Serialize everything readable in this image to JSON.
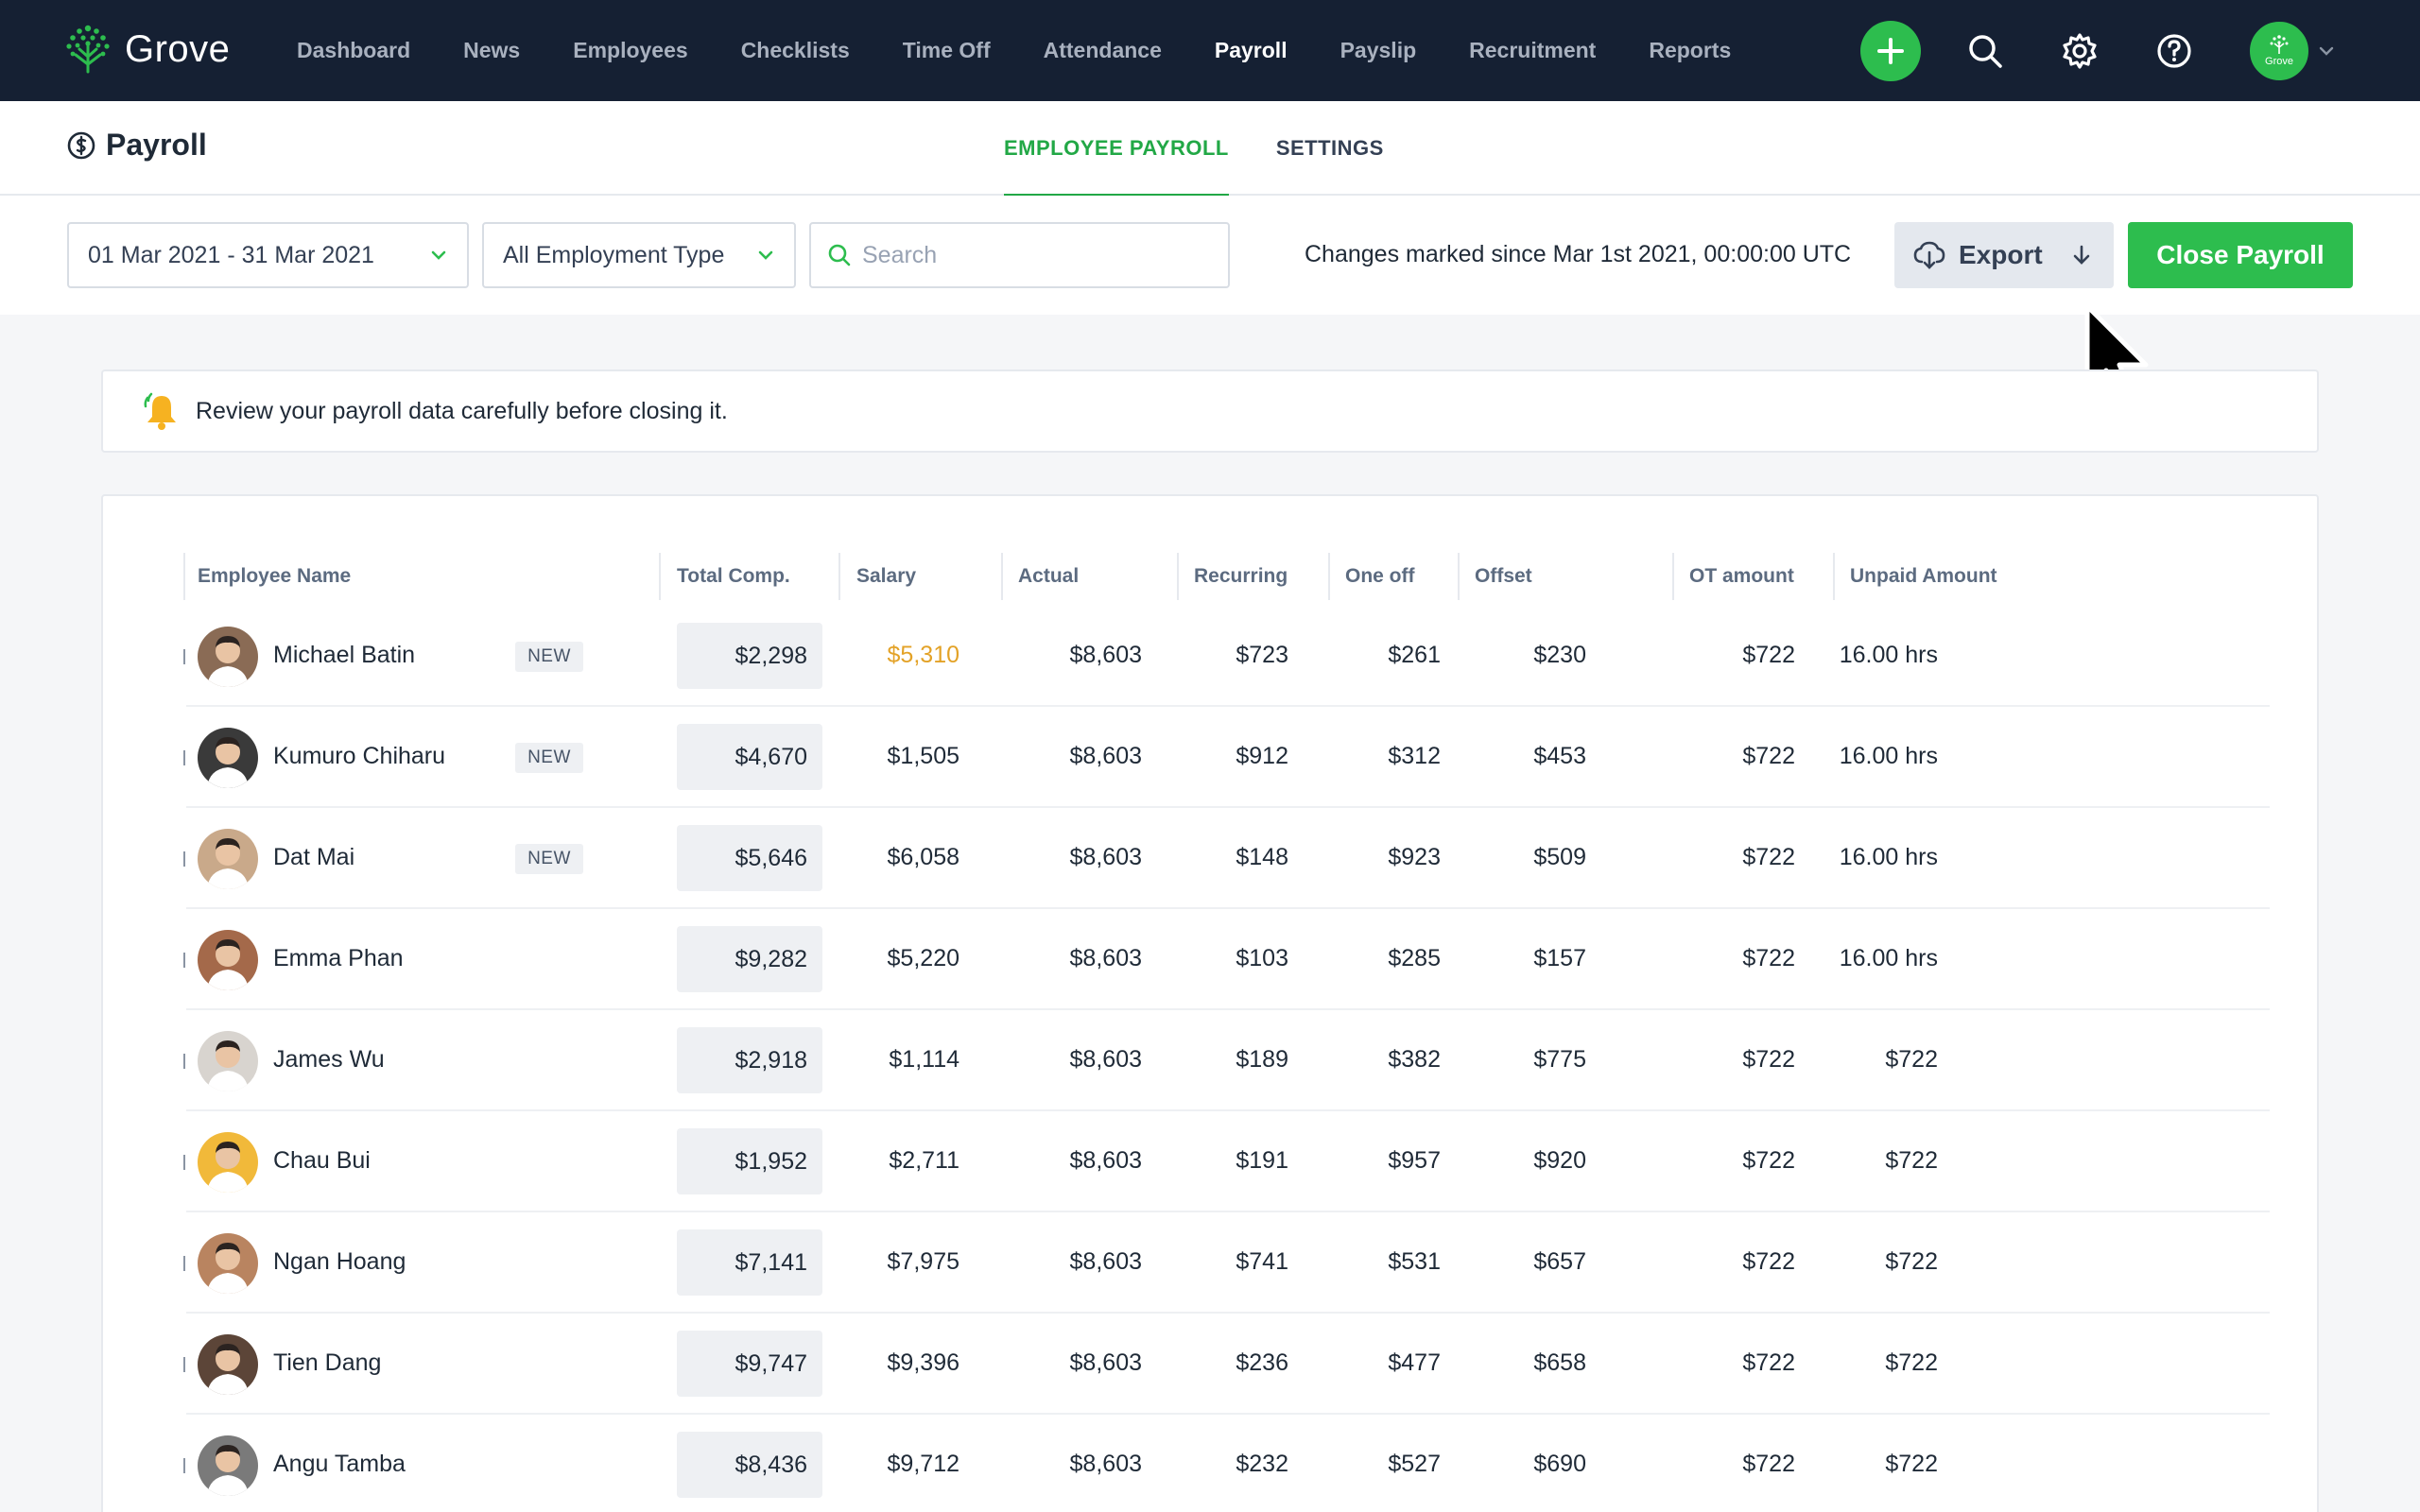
{
  "brand": {
    "name": "Grove",
    "accent": "#2dbd4e"
  },
  "nav": [
    {
      "label": "Dashboard",
      "active": false
    },
    {
      "label": "News",
      "active": false
    },
    {
      "label": "Employees",
      "active": false
    },
    {
      "label": "Checklists",
      "active": false
    },
    {
      "label": "Time Off",
      "active": false
    },
    {
      "label": "Attendance",
      "active": false
    },
    {
      "label": "Payroll",
      "active": true
    },
    {
      "label": "Payslip",
      "active": false
    },
    {
      "label": "Recruitment",
      "active": false
    },
    {
      "label": "Reports",
      "active": false
    }
  ],
  "top_actions": {
    "icons": [
      "plus-icon",
      "search-icon",
      "gear-icon",
      "help-icon"
    ],
    "avatar_label": "Grove"
  },
  "page": {
    "title": "Payroll",
    "tabs": [
      {
        "label": "EMPLOYEE PAYROLL",
        "active": true
      },
      {
        "label": "SETTINGS",
        "active": false
      }
    ]
  },
  "filters": {
    "date_range": "01 Mar 2021 - 31 Mar 2021",
    "employment_type": "All Employment Type",
    "search_placeholder": "Search",
    "changes_note": "Changes marked since Mar 1st 2021, 00:00:00 UTC",
    "export_label": "Export",
    "close_label": "Close Payroll"
  },
  "notice": {
    "text": "Review your payroll data carefully before closing it."
  },
  "table": {
    "columns": [
      "Employee Name",
      "Total Comp.",
      "Salary",
      "Actual",
      "Recurring",
      "One off",
      "Offset",
      "OT amount",
      "Unpaid Amount"
    ],
    "rows": [
      {
        "name": "Michael Batin",
        "badge": "NEW",
        "total": "$2,298",
        "salary": "$5,310",
        "salary_flag": true,
        "actual": "$8,603",
        "recurring": "$723",
        "oneoff": "$261",
        "offset": "$230",
        "ot": "$722",
        "unpaid": "16.00 hrs",
        "avatar_color": "#8a6b55"
      },
      {
        "name": "Kumuro Chiharu",
        "badge": "NEW",
        "total": "$4,670",
        "salary": "$1,505",
        "salary_flag": false,
        "actual": "$8,603",
        "recurring": "$912",
        "oneoff": "$312",
        "offset": "$453",
        "ot": "$722",
        "unpaid": "16.00 hrs",
        "avatar_color": "#3a3a3a"
      },
      {
        "name": "Dat Mai",
        "badge": "NEW",
        "total": "$5,646",
        "salary": "$6,058",
        "salary_flag": false,
        "actual": "$8,603",
        "recurring": "$148",
        "oneoff": "$923",
        "offset": "$509",
        "ot": "$722",
        "unpaid": "16.00 hrs",
        "avatar_color": "#c9a98a"
      },
      {
        "name": "Emma Phan",
        "badge": "",
        "total": "$9,282",
        "salary": "$5,220",
        "salary_flag": false,
        "actual": "$8,603",
        "recurring": "$103",
        "oneoff": "$285",
        "offset": "$157",
        "ot": "$722",
        "unpaid": "16.00 hrs",
        "avatar_color": "#a4694a"
      },
      {
        "name": "James Wu",
        "badge": "",
        "total": "$2,918",
        "salary": "$1,114",
        "salary_flag": false,
        "actual": "$8,603",
        "recurring": "$189",
        "oneoff": "$382",
        "offset": "$775",
        "ot": "$722",
        "unpaid": "$722",
        "avatar_color": "#d8d4cf"
      },
      {
        "name": "Chau Bui",
        "badge": "",
        "total": "$1,952",
        "salary": "$2,711",
        "salary_flag": false,
        "actual": "$8,603",
        "recurring": "$191",
        "oneoff": "$957",
        "offset": "$920",
        "ot": "$722",
        "unpaid": "$722",
        "avatar_color": "#f1b93a"
      },
      {
        "name": "Ngan Hoang",
        "badge": "",
        "total": "$7,141",
        "salary": "$7,975",
        "salary_flag": false,
        "actual": "$8,603",
        "recurring": "$741",
        "oneoff": "$531",
        "offset": "$657",
        "ot": "$722",
        "unpaid": "$722",
        "avatar_color": "#b98460"
      },
      {
        "name": "Tien Dang",
        "badge": "",
        "total": "$9,747",
        "salary": "$9,396",
        "salary_flag": false,
        "actual": "$8,603",
        "recurring": "$236",
        "oneoff": "$477",
        "offset": "$658",
        "ot": "$722",
        "unpaid": "$722",
        "avatar_color": "#5c4538"
      },
      {
        "name": "Angu Tamba",
        "badge": "",
        "total": "$8,436",
        "salary": "$9,712",
        "salary_flag": false,
        "actual": "$8,603",
        "recurring": "$232",
        "oneoff": "$527",
        "offset": "$690",
        "ot": "$722",
        "unpaid": "$722",
        "avatar_color": "#7a7a7a"
      }
    ]
  }
}
